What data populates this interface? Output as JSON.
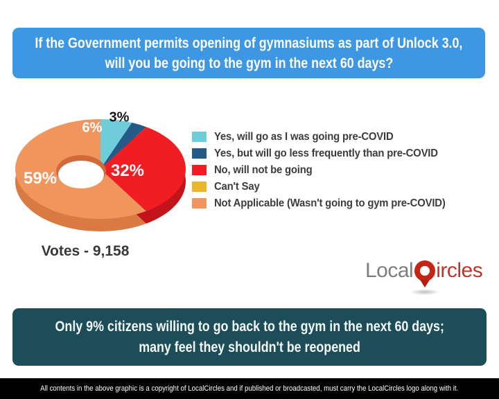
{
  "header": {
    "line1": "If the Government permits opening of gymnasiums as part of Unlock 3.0,",
    "line2": "will you be going to the gym in the next 60 days?"
  },
  "chart_data": {
    "type": "pie",
    "style": "3d-donut",
    "start_angle_deg": 0,
    "direction": "clockwise",
    "legend_position": "right",
    "title": "If the Government permits opening of gymnasiums as part of Unlock 3.0, will you be going to the gym in the next 60 days?",
    "series": [
      {
        "label": "Yes, will go as I was going pre-COVID",
        "value": 6,
        "display": "6%",
        "color": "#6ecdd8",
        "depth_color": "#4fb0bc"
      },
      {
        "label": "Yes, but will go less frequently than pre-COVID",
        "value": 3,
        "display": "3%",
        "color": "#235a88",
        "depth_color": "#163f63"
      },
      {
        "label": "No, will not be going",
        "value": 32,
        "display": "32%",
        "color": "#f01e23",
        "depth_color": "#c2141a"
      },
      {
        "label": "Can't Say",
        "value": 0,
        "display": "",
        "color": "#e9b72b",
        "depth_color": "#c79a1d"
      },
      {
        "label": "Not Applicable (Wasn't going to gym pre-COVID)",
        "value": 59,
        "display": "59%",
        "color": "#f0955e",
        "depth_color": "#d97a42"
      }
    ],
    "votes_label": "Votes - 9,158"
  },
  "logo": {
    "part1": "Local",
    "part2": "ircles"
  },
  "headline": {
    "line1": "Only 9% citizens willing to go back to the gym in the next 60 days;",
    "line2": "many feel they shouldn't be reopened"
  },
  "footer": {
    "copyright": "All contents in the above graphic is a copyright of LocalCircles and if published or broadcasted, must carry the LocalCircles logo along with it."
  },
  "colors": {
    "header_bg": "#3e97e2",
    "headline_bg": "#1c4d58",
    "footer_bg": "#010101",
    "text_on_dark": "#ffffff",
    "legend_text": "#3c3c3c",
    "votes_text": "#383838",
    "logo_gray": "#7e7e7e",
    "logo_red": "#c03529"
  }
}
